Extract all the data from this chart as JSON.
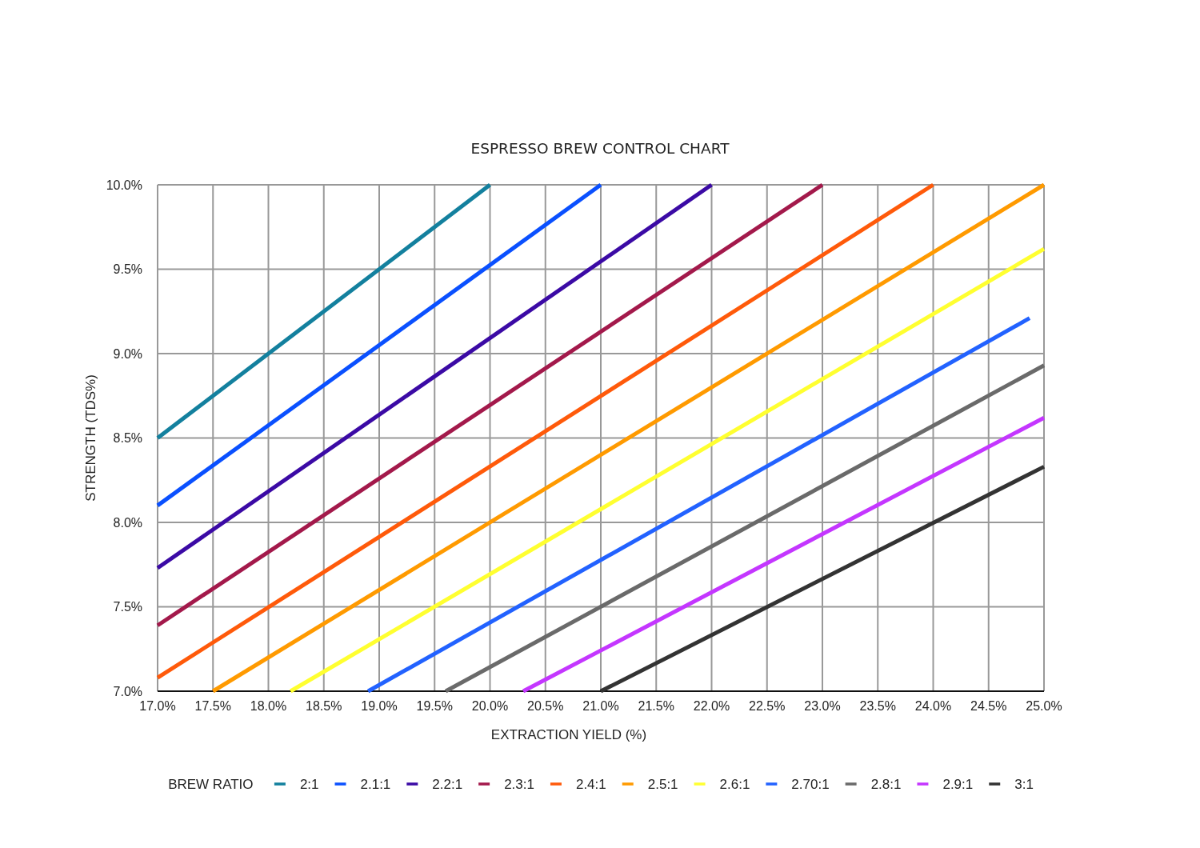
{
  "chart_data": {
    "type": "line",
    "title": "ESPRESSO BREW CONTROL CHART",
    "xlabel": "EXTRACTION YIELD (%)",
    "ylabel": "STRENGTH (TDS%)",
    "legend_title": "BREW RATIO",
    "legend": "bottom",
    "grid": true,
    "xlim": [
      17,
      25
    ],
    "ylim": [
      7,
      10
    ],
    "xticks": [
      {
        "value": 17,
        "label": "17.0%"
      },
      {
        "value": 17.5,
        "label": "17.5%"
      },
      {
        "value": 18,
        "label": "18.0%"
      },
      {
        "value": 18.5,
        "label": "18.5%"
      },
      {
        "value": 19,
        "label": "19.0%"
      },
      {
        "value": 19.5,
        "label": "19.5%"
      },
      {
        "value": 20,
        "label": "20.0%"
      },
      {
        "value": 20.5,
        "label": "20.5%"
      },
      {
        "value": 21,
        "label": "21.0%"
      },
      {
        "value": 21.5,
        "label": "21.5%"
      },
      {
        "value": 22,
        "label": "22.0%"
      },
      {
        "value": 22.5,
        "label": "22.5%"
      },
      {
        "value": 23,
        "label": "23.0%"
      },
      {
        "value": 23.5,
        "label": "23.5%"
      },
      {
        "value": 24,
        "label": "24.0%"
      },
      {
        "value": 24.5,
        "label": "24.5%"
      },
      {
        "value": 25,
        "label": "25.0%"
      }
    ],
    "yticks": [
      {
        "value": 7,
        "label": "7.0%"
      },
      {
        "value": 7.5,
        "label": "7.5%"
      },
      {
        "value": 8,
        "label": "8.0%"
      },
      {
        "value": 8.5,
        "label": "8.5%"
      },
      {
        "value": 9,
        "label": "9.0%"
      },
      {
        "value": 9.5,
        "label": "9.5%"
      },
      {
        "value": 10,
        "label": "10.0%"
      }
    ],
    "series": [
      {
        "name": "2:1",
        "color": "#13809e",
        "x": [
          17,
          20
        ],
        "values": [
          8.5,
          10
        ]
      },
      {
        "name": "2.1:1",
        "color": "#0a50ff",
        "x": [
          17,
          21
        ],
        "values": [
          8.1,
          10
        ]
      },
      {
        "name": "2.2:1",
        "color": "#3b0aa5",
        "x": [
          17,
          22
        ],
        "values": [
          7.73,
          10
        ]
      },
      {
        "name": "2.3:1",
        "color": "#a3194b",
        "x": [
          17,
          23
        ],
        "values": [
          7.39,
          10
        ]
      },
      {
        "name": "2.4:1",
        "color": "#ff5a0a",
        "x": [
          17,
          24
        ],
        "values": [
          7.08,
          10
        ]
      },
      {
        "name": "2.5:1",
        "color": "#ff9a00",
        "x": [
          17.5,
          25
        ],
        "values": [
          7,
          10
        ]
      },
      {
        "name": "2.6:1",
        "color": "#ffff30",
        "x": [
          18.2,
          25
        ],
        "values": [
          7,
          9.62
        ]
      },
      {
        "name": "2.70:1",
        "color": "#2262ff",
        "x": [
          18.9,
          24.87
        ],
        "values": [
          7,
          9.21
        ]
      },
      {
        "name": "2.8:1",
        "color": "#6a6a6a",
        "x": [
          19.6,
          25
        ],
        "values": [
          7,
          8.93
        ]
      },
      {
        "name": "2.9:1",
        "color": "#c436ff",
        "x": [
          20.3,
          25
        ],
        "values": [
          7,
          8.62
        ]
      },
      {
        "name": "3:1",
        "color": "#333333",
        "x": [
          21,
          25
        ],
        "values": [
          7,
          8.33
        ]
      }
    ]
  }
}
